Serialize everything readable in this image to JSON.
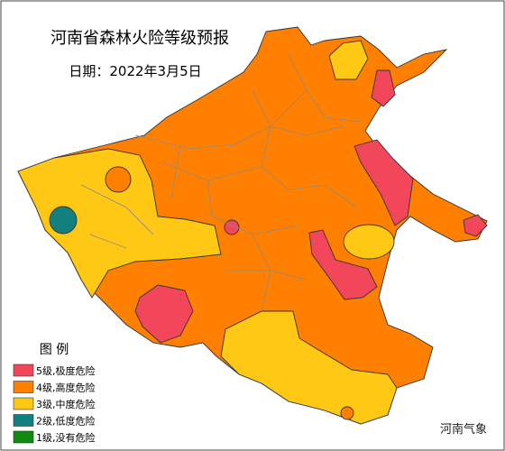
{
  "header": {
    "title": "河南省森林火险等级预报",
    "date": "日期：2022年3月5日"
  },
  "legend": {
    "title": "图 例",
    "items": [
      {
        "label": "5级,极度危险",
        "color": "#f2475a"
      },
      {
        "label": "4级,高度危险",
        "color": "#ff8000"
      },
      {
        "label": "3级,中度危险",
        "color": "#ffc814"
      },
      {
        "label": "2级,低度危险",
        "color": "#138080"
      },
      {
        "label": "1级,没有危险",
        "color": "#118a11"
      }
    ]
  },
  "watermark": "河南气象"
}
